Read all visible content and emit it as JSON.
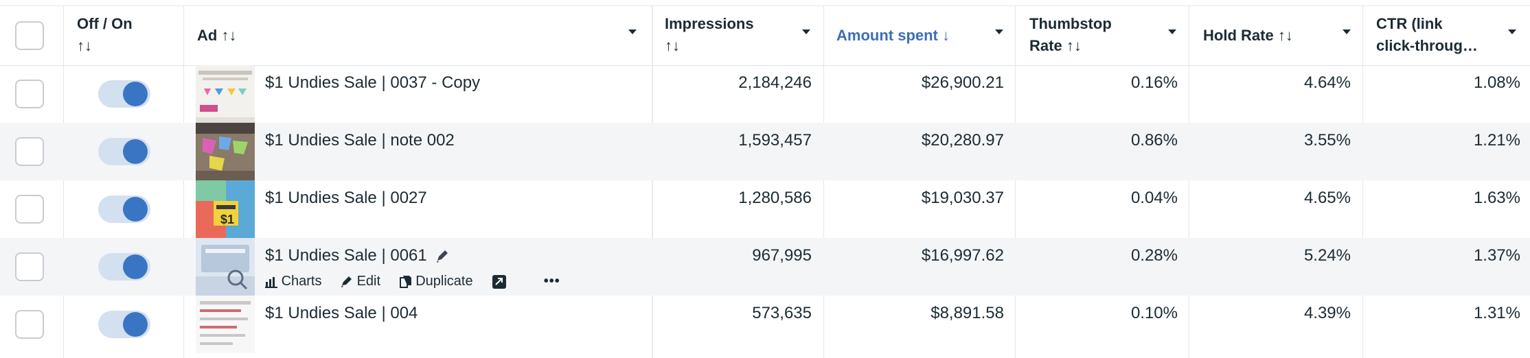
{
  "header": {
    "off_on": "Off / On",
    "ad": "Ad",
    "impressions": "Impressions",
    "amount_spent": "Amount spent",
    "thumbstop_line1": "Thumbstop",
    "thumbstop_line2": "Rate",
    "hold_rate": "Hold Rate",
    "ctr_line1": "CTR (link",
    "ctr_line2": "click-throug…",
    "sort_glyph": "↑↓",
    "sort_down": "↓"
  },
  "colors": {
    "accent": "#3b6fb6",
    "toggle_on": "#3a75c4"
  },
  "rows": [
    {
      "ad": "$1 Undies Sale | 0037 - Copy",
      "impressions": "2,184,246",
      "amount": "$26,900.21",
      "thumbstop": "0.16%",
      "hold": "4.64%",
      "ctr": "1.08%",
      "on": true
    },
    {
      "ad": "$1 Undies Sale | note 002",
      "impressions": "1,593,457",
      "amount": "$20,280.97",
      "thumbstop": "0.86%",
      "hold": "3.55%",
      "ctr": "1.21%",
      "on": true
    },
    {
      "ad": "$1 Undies Sale | 0027",
      "impressions": "1,280,586",
      "amount": "$19,030.37",
      "thumbstop": "0.04%",
      "hold": "4.65%",
      "ctr": "1.63%",
      "on": true
    },
    {
      "ad": "$1 Undies Sale | 0061",
      "impressions": "967,995",
      "amount": "$16,997.62",
      "thumbstop": "0.28%",
      "hold": "5.24%",
      "ctr": "1.37%",
      "on": true
    },
    {
      "ad": "$1 Undies Sale | 004",
      "impressions": "573,635",
      "amount": "$8,891.58",
      "thumbstop": "0.10%",
      "hold": "4.39%",
      "ctr": "1.31%",
      "on": true
    }
  ],
  "thumb_text": {
    "row3_price": "$1"
  },
  "row_actions": {
    "charts": "Charts",
    "edit": "Edit",
    "duplicate": "Duplicate",
    "more": "•••"
  }
}
